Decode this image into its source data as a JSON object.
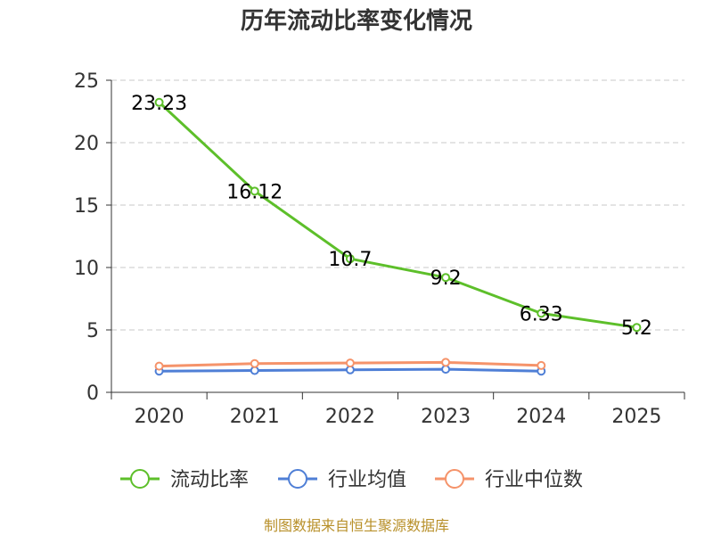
{
  "chart_data": {
    "type": "line",
    "title": "历年流动比率变化情况",
    "categories": [
      "2020",
      "2021",
      "2022",
      "2023",
      "2024",
      "2025"
    ],
    "ylim": [
      0,
      25
    ],
    "yticks": [
      0,
      5,
      10,
      15,
      20,
      25
    ],
    "grid": true,
    "legend_position": "bottom",
    "series": [
      {
        "name": "流动比率",
        "color": "#5dbf2a",
        "values": [
          23.23,
          16.12,
          10.7,
          9.2,
          6.33,
          5.2
        ],
        "labels": [
          "23.23",
          "16.12",
          "10.7",
          "9.2",
          "6.33",
          "5.2"
        ]
      },
      {
        "name": "行业均值",
        "color": "#4f7fd6",
        "values": [
          1.7,
          1.75,
          1.8,
          1.85,
          1.7,
          null
        ]
      },
      {
        "name": "行业中位数",
        "color": "#f5936a",
        "values": [
          2.1,
          2.3,
          2.35,
          2.4,
          2.15,
          null
        ]
      }
    ]
  },
  "source_text": "制图数据来自恒生聚源数据库"
}
